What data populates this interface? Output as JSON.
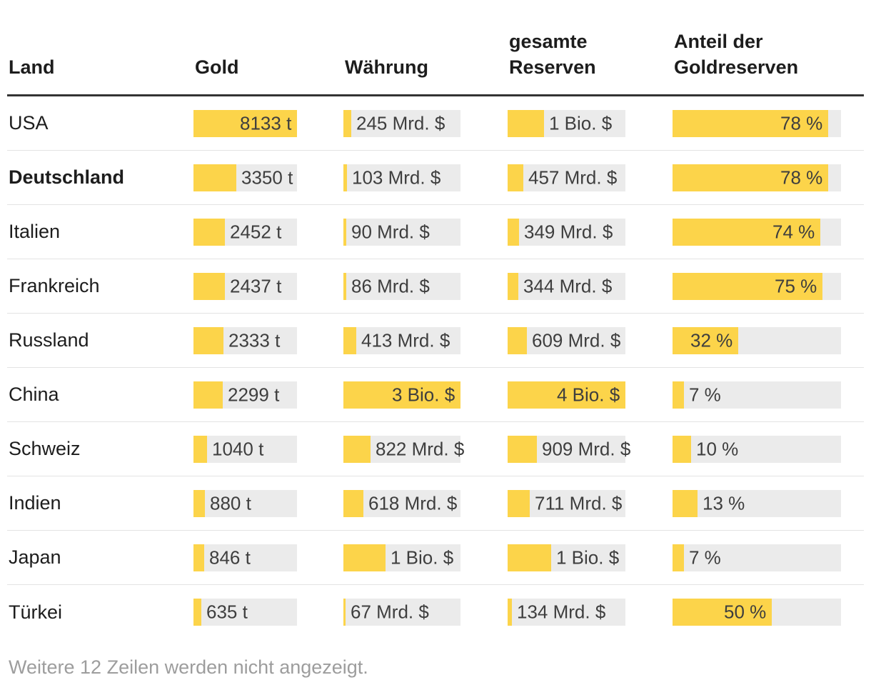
{
  "chart_data": {
    "type": "table",
    "bar_fill_color": "#fcd44a",
    "bar_track_color": "#ebebeb",
    "columns": [
      {
        "key": "land",
        "label": "Land"
      },
      {
        "key": "gold",
        "label": "Gold"
      },
      {
        "key": "waehrung",
        "label": "Währung"
      },
      {
        "key": "reserven",
        "label": "gesamte Reserven"
      },
      {
        "key": "anteil",
        "label": "Anteil der Goldreserven"
      }
    ],
    "rows": [
      {
        "land": "USA",
        "bold": false,
        "cells": [
          {
            "text": "8133 t",
            "bar_pct": 100
          },
          {
            "text": "245 Mrd. $",
            "bar_pct": 6.7
          },
          {
            "text": "1 Bio. $",
            "bar_pct": 31.0
          },
          {
            "text": "78 %",
            "bar_pct": 92.4
          }
        ]
      },
      {
        "land": "Deutschland",
        "bold": true,
        "cells": [
          {
            "text": "3350 t",
            "bar_pct": 41.2
          },
          {
            "text": "103 Mrd. $",
            "bar_pct": 3.0
          },
          {
            "text": "457 Mrd. $",
            "bar_pct": 13.1
          },
          {
            "text": "78 %",
            "bar_pct": 92.4
          }
        ]
      },
      {
        "land": "Italien",
        "bold": false,
        "cells": [
          {
            "text": "2452 t",
            "bar_pct": 30.2
          },
          {
            "text": "90 Mrd. $",
            "bar_pct": 2.4
          },
          {
            "text": "349 Mrd. $",
            "bar_pct": 9.7
          },
          {
            "text": "74 %",
            "bar_pct": 87.7
          }
        ]
      },
      {
        "land": "Frankreich",
        "bold": false,
        "cells": [
          {
            "text": "2437 t",
            "bar_pct": 30.0
          },
          {
            "text": "86 Mrd. $",
            "bar_pct": 2.4
          },
          {
            "text": "344 Mrd. $",
            "bar_pct": 9.3
          },
          {
            "text": "75 %",
            "bar_pct": 88.9
          }
        ]
      },
      {
        "land": "Russland",
        "bold": false,
        "cells": [
          {
            "text": "2333 t",
            "bar_pct": 28.7
          },
          {
            "text": "413 Mrd. $",
            "bar_pct": 11.2
          },
          {
            "text": "609 Mrd. $",
            "bar_pct": 16.1
          },
          {
            "text": "32 %",
            "bar_pct": 38.9
          }
        ]
      },
      {
        "land": "China",
        "bold": false,
        "cells": [
          {
            "text": "2299 t",
            "bar_pct": 28.3
          },
          {
            "text": "3 Bio. $",
            "bar_pct": 100
          },
          {
            "text": "4 Bio. $",
            "bar_pct": 100
          },
          {
            "text": "7 %",
            "bar_pct": 6.9
          }
        ]
      },
      {
        "land": "Schweiz",
        "bold": false,
        "cells": [
          {
            "text": "1040 t",
            "bar_pct": 12.8
          },
          {
            "text": "822 Mrd. $",
            "bar_pct": 23.4
          },
          {
            "text": "909 Mrd. $",
            "bar_pct": 24.8
          },
          {
            "text": "10 %",
            "bar_pct": 10.9
          }
        ]
      },
      {
        "land": "Indien",
        "bold": false,
        "cells": [
          {
            "text": "880 t",
            "bar_pct": 10.8
          },
          {
            "text": "618 Mrd. $",
            "bar_pct": 17.3
          },
          {
            "text": "711 Mrd. $",
            "bar_pct": 18.8
          },
          {
            "text": "13 %",
            "bar_pct": 14.7
          }
        ]
      },
      {
        "land": "Japan",
        "bold": false,
        "cells": [
          {
            "text": "846 t",
            "bar_pct": 10.4
          },
          {
            "text": "1 Bio. $",
            "bar_pct": 35.8
          },
          {
            "text": "1 Bio. $",
            "bar_pct": 37.0
          },
          {
            "text": "7 %",
            "bar_pct": 6.9
          }
        ]
      },
      {
        "land": "Türkei",
        "bold": false,
        "cells": [
          {
            "text": "635 t",
            "bar_pct": 7.8
          },
          {
            "text": "67 Mrd. $",
            "bar_pct": 2.0
          },
          {
            "text": "134 Mrd. $",
            "bar_pct": 3.6
          },
          {
            "text": "50 %",
            "bar_pct": 59.1
          }
        ]
      }
    ],
    "note": "Weitere 12 Zeilen werden nicht angezeigt."
  }
}
